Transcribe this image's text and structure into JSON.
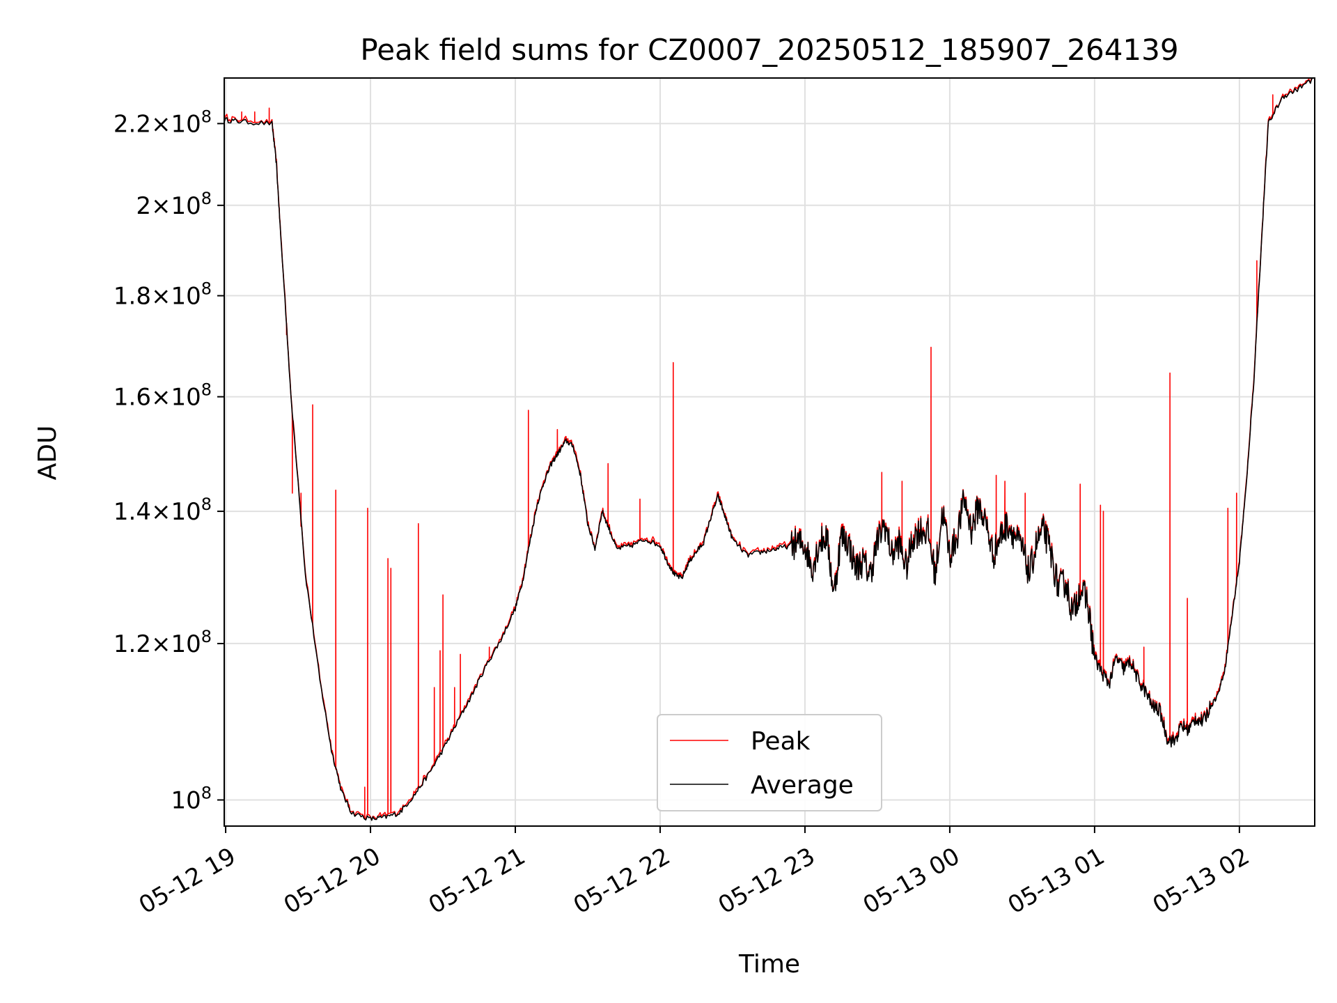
{
  "chart_data": {
    "type": "line",
    "title": "Peak field sums for CZ0007_20250512_185907_264139",
    "xlabel": "Time",
    "ylabel": "ADU",
    "y_scale": "log",
    "ylim": [
      97000000,
      232000000
    ],
    "y_ticks": [
      {
        "value": 100000000,
        "mantissa": "",
        "exponent": "8"
      },
      {
        "value": 120000000,
        "mantissa": "1.2",
        "exponent": "8"
      },
      {
        "value": 140000000,
        "mantissa": "1.4",
        "exponent": "8"
      },
      {
        "value": 160000000,
        "mantissa": "1.6",
        "exponent": "8"
      },
      {
        "value": 180000000,
        "mantissa": "1.8",
        "exponent": "8"
      },
      {
        "value": 200000000,
        "mantissa": "2",
        "exponent": "8"
      },
      {
        "value": 220000000,
        "mantissa": "2.2",
        "exponent": "8"
      }
    ],
    "x_ticks": [
      {
        "hour": 19,
        "label": "05-12 19"
      },
      {
        "hour": 20,
        "label": "05-12 20"
      },
      {
        "hour": 21,
        "label": "05-12 21"
      },
      {
        "hour": 22,
        "label": "05-12 22"
      },
      {
        "hour": 23,
        "label": "05-12 23"
      },
      {
        "hour": 24,
        "label": "05-13 00"
      },
      {
        "hour": 25,
        "label": "05-13 01"
      },
      {
        "hour": 26,
        "label": "05-13 02"
      }
    ],
    "x_unit_note": "hours relative to 2025-05-12 00:00",
    "xlim": [
      18.99,
      26.52
    ],
    "grid": true,
    "legend_position": "bottom-center",
    "series": [
      {
        "name": "Average",
        "color": "#000000",
        "x": [
          18.99,
          19.1,
          19.32,
          19.35,
          19.38,
          19.45,
          19.55,
          19.65,
          19.73,
          19.8,
          19.87,
          20.0,
          20.1,
          20.2,
          20.3,
          20.4,
          20.5,
          20.6,
          20.7,
          20.8,
          20.9,
          21.0,
          21.05,
          21.1,
          21.15,
          21.2,
          21.25,
          21.3,
          21.35,
          21.4,
          21.45,
          21.5,
          21.55,
          21.6,
          21.65,
          21.7,
          21.8,
          21.9,
          22.0,
          22.05,
          22.1,
          22.15,
          22.2,
          22.25,
          22.3,
          22.35,
          22.4,
          22.45,
          22.5,
          22.6,
          22.7,
          22.8,
          22.9,
          22.95,
          23.0,
          23.05,
          23.1,
          23.15,
          23.2,
          23.25,
          23.3,
          23.35,
          23.4,
          23.45,
          23.5,
          23.55,
          23.6,
          23.65,
          23.7,
          23.75,
          23.8,
          23.85,
          23.9,
          23.95,
          24.0,
          24.05,
          24.1,
          24.15,
          24.2,
          24.25,
          24.3,
          24.35,
          24.4,
          24.45,
          24.5,
          24.55,
          24.6,
          24.65,
          24.7,
          24.75,
          24.8,
          24.85,
          24.9,
          24.95,
          25.0,
          25.05,
          25.1,
          25.15,
          25.2,
          25.25,
          25.3,
          25.35,
          25.4,
          25.45,
          25.5,
          25.55,
          25.6,
          25.65,
          25.7,
          25.75,
          25.8,
          25.85,
          25.9,
          25.95,
          26.0,
          26.05,
          26.1,
          26.15,
          26.2,
          26.3,
          26.4,
          26.52
        ],
        "values": [
          221000000,
          220500000,
          220000000,
          210000000,
          193000000,
          160000000,
          130000000,
          115000000,
          106000000,
          101000000,
          98500000,
          97800000,
          98000000,
          98500000,
          100500000,
          103000000,
          106000000,
          109500000,
          113000000,
          117000000,
          120500000,
          125000000,
          129000000,
          135000000,
          141000000,
          145000000,
          148000000,
          150000000,
          152000000,
          151000000,
          146000000,
          138000000,
          134000000,
          140000000,
          137000000,
          134000000,
          134500000,
          135500000,
          134500000,
          132000000,
          130000000,
          129500000,
          132000000,
          133500000,
          135000000,
          139000000,
          142500000,
          139000000,
          135500000,
          133000000,
          133500000,
          134000000,
          134500000,
          135000000,
          134500000,
          131000000,
          135000000,
          136000000,
          127000000,
          136000000,
          135000000,
          131000000,
          132000000,
          130000000,
          135000000,
          138000000,
          133000000,
          135000000,
          131000000,
          136000000,
          137000000,
          136500000,
          130000000,
          140000000,
          133000000,
          136000000,
          142000000,
          137000000,
          141000000,
          138000000,
          133000000,
          136000000,
          138000000,
          136000000,
          134000000,
          130000000,
          135000000,
          137000000,
          133000000,
          128000000,
          129000000,
          124000000,
          128000000,
          126000000,
          118000000,
          116000000,
          114500000,
          118000000,
          116500000,
          117500000,
          115000000,
          113500000,
          111500000,
          111000000,
          107500000,
          107000000,
          109000000,
          108500000,
          110000000,
          109500000,
          111500000,
          113000000,
          116500000,
          124000000,
          132000000,
          145000000,
          163000000,
          190000000,
          220000000,
          227000000,
          229000000,
          232000000
        ]
      },
      {
        "name": "Peak",
        "color": "#ff0000",
        "spikes": [
          {
            "x": 19.6,
            "value": 158500000
          },
          {
            "x": 19.46,
            "value": 143000000
          },
          {
            "x": 19.52,
            "value": 143000000
          },
          {
            "x": 19.42,
            "value": 172000000
          },
          {
            "x": 19.76,
            "value": 143500000
          },
          {
            "x": 19.98,
            "value": 140500000
          },
          {
            "x": 19.96,
            "value": 101500000
          },
          {
            "x": 20.12,
            "value": 132500000
          },
          {
            "x": 20.14,
            "value": 131000000
          },
          {
            "x": 20.33,
            "value": 138000000
          },
          {
            "x": 20.5,
            "value": 127000000
          },
          {
            "x": 20.48,
            "value": 119000000
          },
          {
            "x": 20.44,
            "value": 114000000
          },
          {
            "x": 20.62,
            "value": 118500000
          },
          {
            "x": 20.58,
            "value": 114000000
          },
          {
            "x": 20.82,
            "value": 119500000
          },
          {
            "x": 21.09,
            "value": 157500000
          },
          {
            "x": 21.29,
            "value": 154000000
          },
          {
            "x": 21.64,
            "value": 148000000
          },
          {
            "x": 21.86,
            "value": 142000000
          },
          {
            "x": 22.09,
            "value": 166500000
          },
          {
            "x": 23.53,
            "value": 146500000
          },
          {
            "x": 23.67,
            "value": 145000000
          },
          {
            "x": 23.87,
            "value": 169500000
          },
          {
            "x": 24.38,
            "value": 145000000
          },
          {
            "x": 24.32,
            "value": 146000000
          },
          {
            "x": 24.52,
            "value": 143000000
          },
          {
            "x": 24.9,
            "value": 144500000
          },
          {
            "x": 25.04,
            "value": 141000000
          },
          {
            "x": 25.06,
            "value": 140000000
          },
          {
            "x": 25.34,
            "value": 119500000
          },
          {
            "x": 25.52,
            "value": 164500000
          },
          {
            "x": 25.64,
            "value": 126500000
          },
          {
            "x": 25.92,
            "value": 140500000
          },
          {
            "x": 25.98,
            "value": 143000000
          },
          {
            "x": 26.12,
            "value": 187500000
          },
          {
            "x": 26.23,
            "value": 227500000
          },
          {
            "x": 19.11,
            "value": 223000000
          },
          {
            "x": 19.2,
            "value": 223000000
          },
          {
            "x": 19.3,
            "value": 224000000
          }
        ]
      }
    ]
  }
}
